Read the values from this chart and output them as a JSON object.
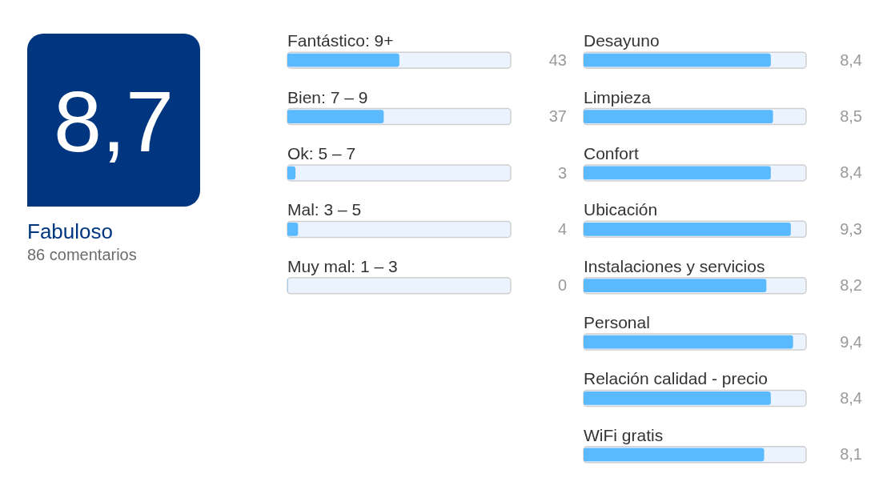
{
  "chart_data": [
    {
      "type": "other",
      "color": "#003580",
      "annotations": [
        "8,7",
        "Fabuloso",
        "86 comentarios"
      ]
    },
    {
      "type": "bar",
      "orientation": "horizontal",
      "categories": [
        "Fantástico: 9+",
        "Bien: 7 – 9",
        "Ok: 5 – 7",
        "Mal: 3 – 5",
        "Muy mal: 1 – 3"
      ],
      "values": [
        43,
        37,
        3,
        4,
        0
      ],
      "color": "#5bbaff",
      "xlim": [
        0,
        86
      ],
      "tick_labels": "y",
      "data_labels": true
    },
    {
      "type": "bar",
      "orientation": "horizontal",
      "categories": [
        "Desayuno",
        "Limpieza",
        "Confort",
        "Ubicación",
        "Instalaciones y servicios",
        "Personal",
        "Relación calidad - precio",
        "WiFi gratis"
      ],
      "values": [
        8.4,
        8.5,
        8.4,
        9.3,
        8.2,
        9.4,
        8.4,
        8.1
      ],
      "value_labels": [
        "8,4",
        "8,5",
        "8,4",
        "9,3",
        "8,2",
        "9,4",
        "8,4",
        "8,1"
      ],
      "color": "#5bbaff",
      "xlim": [
        0,
        10
      ],
      "tick_labels": "y"
    }
  ]
}
